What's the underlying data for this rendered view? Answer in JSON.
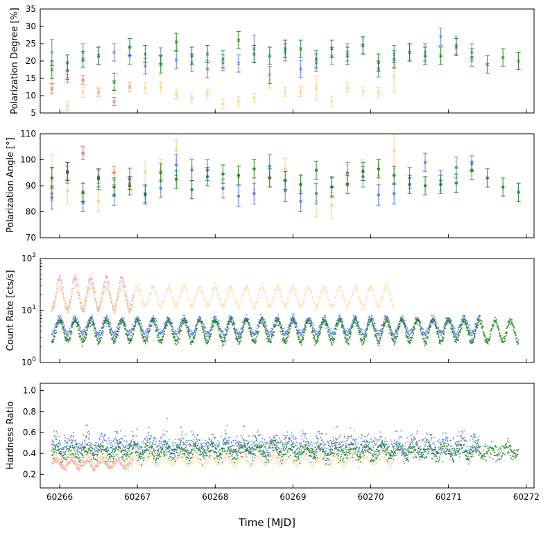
{
  "colors": {
    "red": "#e8474c",
    "orange": "#f9c46a",
    "blue": "#4d73e0",
    "green": "#0f7a12"
  },
  "chart_data": [
    {
      "type": "scatter",
      "ylabel": "Polarization Degree [%]",
      "xlim": [
        60265.75,
        60272.1
      ],
      "ylim": [
        5,
        35
      ],
      "yticks": [
        5,
        10,
        15,
        20,
        25,
        30,
        35
      ],
      "marker": "x",
      "series": [
        {
          "color": "red",
          "x": [
            60265.9,
            60266.1,
            60266.3,
            60266.5,
            60266.7,
            60266.9
          ],
          "y": [
            12,
            15,
            14.5,
            11,
            8.3,
            12.5
          ],
          "err": [
            1.5,
            1.2,
            1.3,
            1.2,
            1.2,
            1.3
          ]
        },
        {
          "color": "orange",
          "x": [
            60265.9,
            60266.1,
            60266.3,
            60266.5,
            60266.7,
            60266.9,
            60267.1,
            60267.3,
            60267.5,
            60267.7,
            60267.9,
            60268.1,
            60268.3,
            60268.5,
            60268.7,
            60268.9,
            60269.1,
            60269.3,
            60269.5,
            60269.7,
            60269.9,
            60270.1,
            60270.3
          ],
          "y": [
            13.5,
            7,
            11,
            11,
            12,
            12.5,
            12.3,
            12.5,
            10.3,
            9.2,
            10.6,
            7.6,
            8.3,
            9.4,
            13.5,
            11.1,
            11.2,
            12.3,
            8.3,
            12.3,
            11.2,
            10.8,
            15.5
          ],
          "err": [
            1.3,
            1.2,
            1.5,
            1.2,
            1.5,
            1.3,
            1.5,
            1.5,
            1.3,
            1.3,
            1.3,
            1.3,
            1.3,
            1.3,
            1.3,
            1.3,
            1.5,
            3.5,
            1.5,
            1.3,
            1.3,
            1.5,
            4.5
          ]
        },
        {
          "color": "blue",
          "x": [
            60265.9,
            60266.1,
            60266.3,
            60266.5,
            60266.7,
            60266.9,
            60267.1,
            60267.3,
            60267.5,
            60267.7,
            60267.9,
            60268.1,
            60268.3,
            60268.5,
            60268.7,
            60268.9,
            60269.1,
            60269.3,
            60269.5,
            60269.7,
            60269.9,
            60270.1,
            60270.3,
            60270.5,
            60270.7,
            60270.9,
            60271.1,
            60271.3
          ],
          "y": [
            22.5,
            17.2,
            22.5,
            21.5,
            22.5,
            21.5,
            18.5,
            21.5,
            20.3,
            19.5,
            17.7,
            19.5,
            19.3,
            23.5,
            16,
            22.5,
            17.7,
            19.5,
            21.5,
            22.5,
            24.5,
            17.7,
            22,
            22.5,
            22.5,
            27,
            24.5,
            22.5
          ],
          "err": [
            3.8,
            2.5,
            2.5,
            2.5,
            2.5,
            2.5,
            2.3,
            2.3,
            2.5,
            2.5,
            2.5,
            2.3,
            2.5,
            4,
            2.5,
            2.5,
            2.5,
            2.5,
            2.5,
            2.5,
            2.5,
            2.3,
            2.5,
            2.5,
            2.5,
            2.5,
            2.5,
            2.5
          ]
        },
        {
          "color": "green",
          "x": [
            60265.9,
            60266.1,
            60266.3,
            60266.5,
            60266.7,
            60266.9,
            60267.1,
            60267.3,
            60267.5,
            60267.7,
            60267.9,
            60268.1,
            60268.3,
            60268.5,
            60268.7,
            60268.9,
            60269.1,
            60269.3,
            60269.5,
            60269.7,
            60269.9,
            60270.1,
            60270.3,
            60270.5,
            60270.7,
            60270.9,
            60271.1,
            60271.3,
            60271.5,
            60271.7,
            60271.9
          ],
          "y": [
            17.5,
            19.5,
            20.5,
            21.5,
            14,
            24,
            22,
            19,
            25.5,
            21.5,
            22,
            20.5,
            26,
            22,
            21.5,
            23.5,
            23.5,
            20.5,
            23.5,
            21.5,
            24.5,
            19.5,
            20.5,
            22.5,
            21.5,
            21.5,
            24,
            21,
            19,
            21,
            20
          ],
          "err": [
            2.5,
            2.3,
            2.3,
            2.5,
            2.5,
            2.5,
            2.5,
            2.5,
            2.5,
            2.5,
            2.5,
            2.5,
            2.5,
            2.5,
            2.5,
            2.5,
            2.5,
            2.5,
            2.5,
            2.5,
            2.5,
            2.5,
            2.5,
            2.5,
            2.5,
            2.5,
            2.5,
            2.5,
            2.5,
            2.5,
            2.5
          ]
        }
      ]
    },
    {
      "type": "scatter",
      "ylabel": "Polarization Angle [°]",
      "xlim": [
        60265.75,
        60272.1
      ],
      "ylim": [
        70,
        110
      ],
      "yticks": [
        70,
        80,
        90,
        100,
        110
      ],
      "marker": "dot",
      "series": [
        {
          "color": "red",
          "x": [
            60265.9,
            60266.1,
            60266.3,
            60266.5,
            60266.7,
            60266.9
          ],
          "y": [
            87,
            95,
            102.5,
            93.5,
            95,
            91
          ],
          "err": [
            2.5,
            2.5,
            2.5,
            2.5,
            2.5,
            2.5
          ]
        },
        {
          "color": "orange",
          "x": [
            60265.9,
            60266.1,
            60266.3,
            60266.5,
            60266.7,
            60266.9,
            60267.1,
            60267.3,
            60267.5,
            60267.7,
            60267.9,
            60268.1,
            60268.3,
            60268.5,
            60268.7,
            60268.9,
            60269.1,
            60269.3,
            60269.5,
            60269.7,
            60269.9,
            60270.1,
            60270.3
          ],
          "y": [
            97,
            88,
            84,
            84,
            92,
            93,
            95.5,
            96,
            103.5,
            97,
            96,
            89,
            93,
            88.5,
            93.5,
            96.5,
            90.5,
            84,
            82.5,
            94,
            96,
            94,
            103.5
          ],
          "err": [
            5,
            5,
            4,
            4,
            4,
            4,
            4,
            4,
            4,
            4,
            4,
            4,
            5,
            4,
            4,
            4,
            4,
            6,
            5,
            4,
            4,
            4,
            7
          ]
        },
        {
          "color": "blue",
          "x": [
            60265.9,
            60266.1,
            60266.3,
            60266.5,
            60266.7,
            60266.9,
            60267.1,
            60267.3,
            60267.5,
            60267.7,
            60267.9,
            60268.1,
            60268.3,
            60268.5,
            60268.7,
            60268.9,
            60269.1,
            60269.3,
            60269.5,
            60269.7,
            60269.9,
            60270.1,
            60270.3,
            60270.5,
            60270.7,
            60270.9,
            60271.1,
            60271.3
          ],
          "y": [
            85.5,
            95,
            83.5,
            92.5,
            86.5,
            92.5,
            87,
            89,
            98,
            96,
            96,
            89,
            86,
            87,
            97.5,
            88,
            84,
            87,
            89.5,
            95,
            93.5,
            86.5,
            87,
            93,
            99,
            92,
            97,
            98.5
          ],
          "err": [
            4.5,
            4,
            3.5,
            4,
            4,
            4,
            3.5,
            3.5,
            4,
            4,
            4,
            3.5,
            4,
            4,
            4.5,
            4,
            4,
            4,
            4,
            4,
            4,
            4,
            4,
            4,
            3.5,
            4,
            4,
            3
          ]
        },
        {
          "color": "green",
          "x": [
            60265.9,
            60266.1,
            60266.3,
            60266.5,
            60266.7,
            60266.9,
            60267.1,
            60267.3,
            60267.5,
            60267.7,
            60267.9,
            60268.1,
            60268.3,
            60268.5,
            60268.7,
            60268.9,
            60269.1,
            60269.3,
            60269.5,
            60269.7,
            60269.9,
            60270.1,
            60270.3,
            60270.5,
            60270.7,
            60270.9,
            60271.1,
            60271.3,
            60271.5,
            60271.7,
            60271.9
          ],
          "y": [
            93,
            95.5,
            87.5,
            93,
            89.5,
            90,
            86.5,
            95,
            92.5,
            88.5,
            93.5,
            94.5,
            94,
            96.5,
            93,
            92,
            90.5,
            96,
            89.5,
            90.5,
            95.5,
            96.5,
            94,
            90.5,
            90,
            90.5,
            91,
            96,
            93,
            89.5,
            87.5
          ],
          "err": [
            4,
            3.5,
            3.5,
            3.5,
            3.5,
            3.5,
            3.5,
            3.5,
            3.5,
            3.5,
            3.5,
            3.5,
            3.5,
            3.5,
            3.5,
            3.5,
            3.5,
            3.5,
            3.5,
            3.5,
            3.5,
            3.5,
            3.5,
            3.5,
            3.5,
            3.5,
            3.5,
            3.5,
            3.5,
            3.5,
            3.5
          ]
        }
      ]
    },
    {
      "type": "scatter",
      "ylabel": "Count Rate [cts/s]",
      "yscale": "log",
      "xlim": [
        60265.75,
        60272.1
      ],
      "ylim": [
        1,
        100
      ],
      "yticks": [
        1,
        10,
        100
      ],
      "ytick_labels": [
        "10^0",
        "10^1",
        "10^2"
      ],
      "series": [
        {
          "color": "red",
          "t_start": 60265.9,
          "t_end": 60266.95,
          "period": 0.2,
          "low": 10,
          "high": 42
        },
        {
          "color": "orange",
          "t_start": 60265.9,
          "t_end": 60270.3,
          "period": 0.2,
          "low": 12,
          "high": 28
        },
        {
          "color": "blue",
          "t_start": 60265.9,
          "t_end": 60271.4,
          "period": 0.2,
          "low": 3.5,
          "high": 7
        },
        {
          "color": "green",
          "t_start": 60265.9,
          "t_end": 60271.9,
          "period": 0.2,
          "low": 2.5,
          "high": 6.5
        }
      ]
    },
    {
      "type": "scatter",
      "ylabel": "Hardness Ratio",
      "xlabel": "Time [MJD]",
      "xlim": [
        60265.75,
        60272.1
      ],
      "ylim": [
        0.07,
        1.07
      ],
      "yticks": [
        0.2,
        0.4,
        0.6,
        0.8,
        1.0
      ],
      "ytick_labels": [
        "0.2",
        "0.4",
        "0.6",
        "0.8",
        "1.0"
      ],
      "xticks": [
        60266,
        60267,
        60268,
        60269,
        60270,
        60271,
        60272
      ],
      "series": [
        {
          "color": "red",
          "t_start": 60265.9,
          "t_end": 60266.95,
          "center": 0.3,
          "spread": 0.03
        },
        {
          "color": "orange",
          "t_start": 60265.9,
          "t_end": 60270.3,
          "center": 0.33,
          "spread": 0.03
        },
        {
          "color": "blue",
          "t_start": 60265.9,
          "t_end": 60271.4,
          "center": 0.48,
          "spread": 0.1
        },
        {
          "color": "green",
          "t_start": 60265.9,
          "t_end": 60271.9,
          "center": 0.42,
          "spread": 0.07
        }
      ]
    }
  ]
}
